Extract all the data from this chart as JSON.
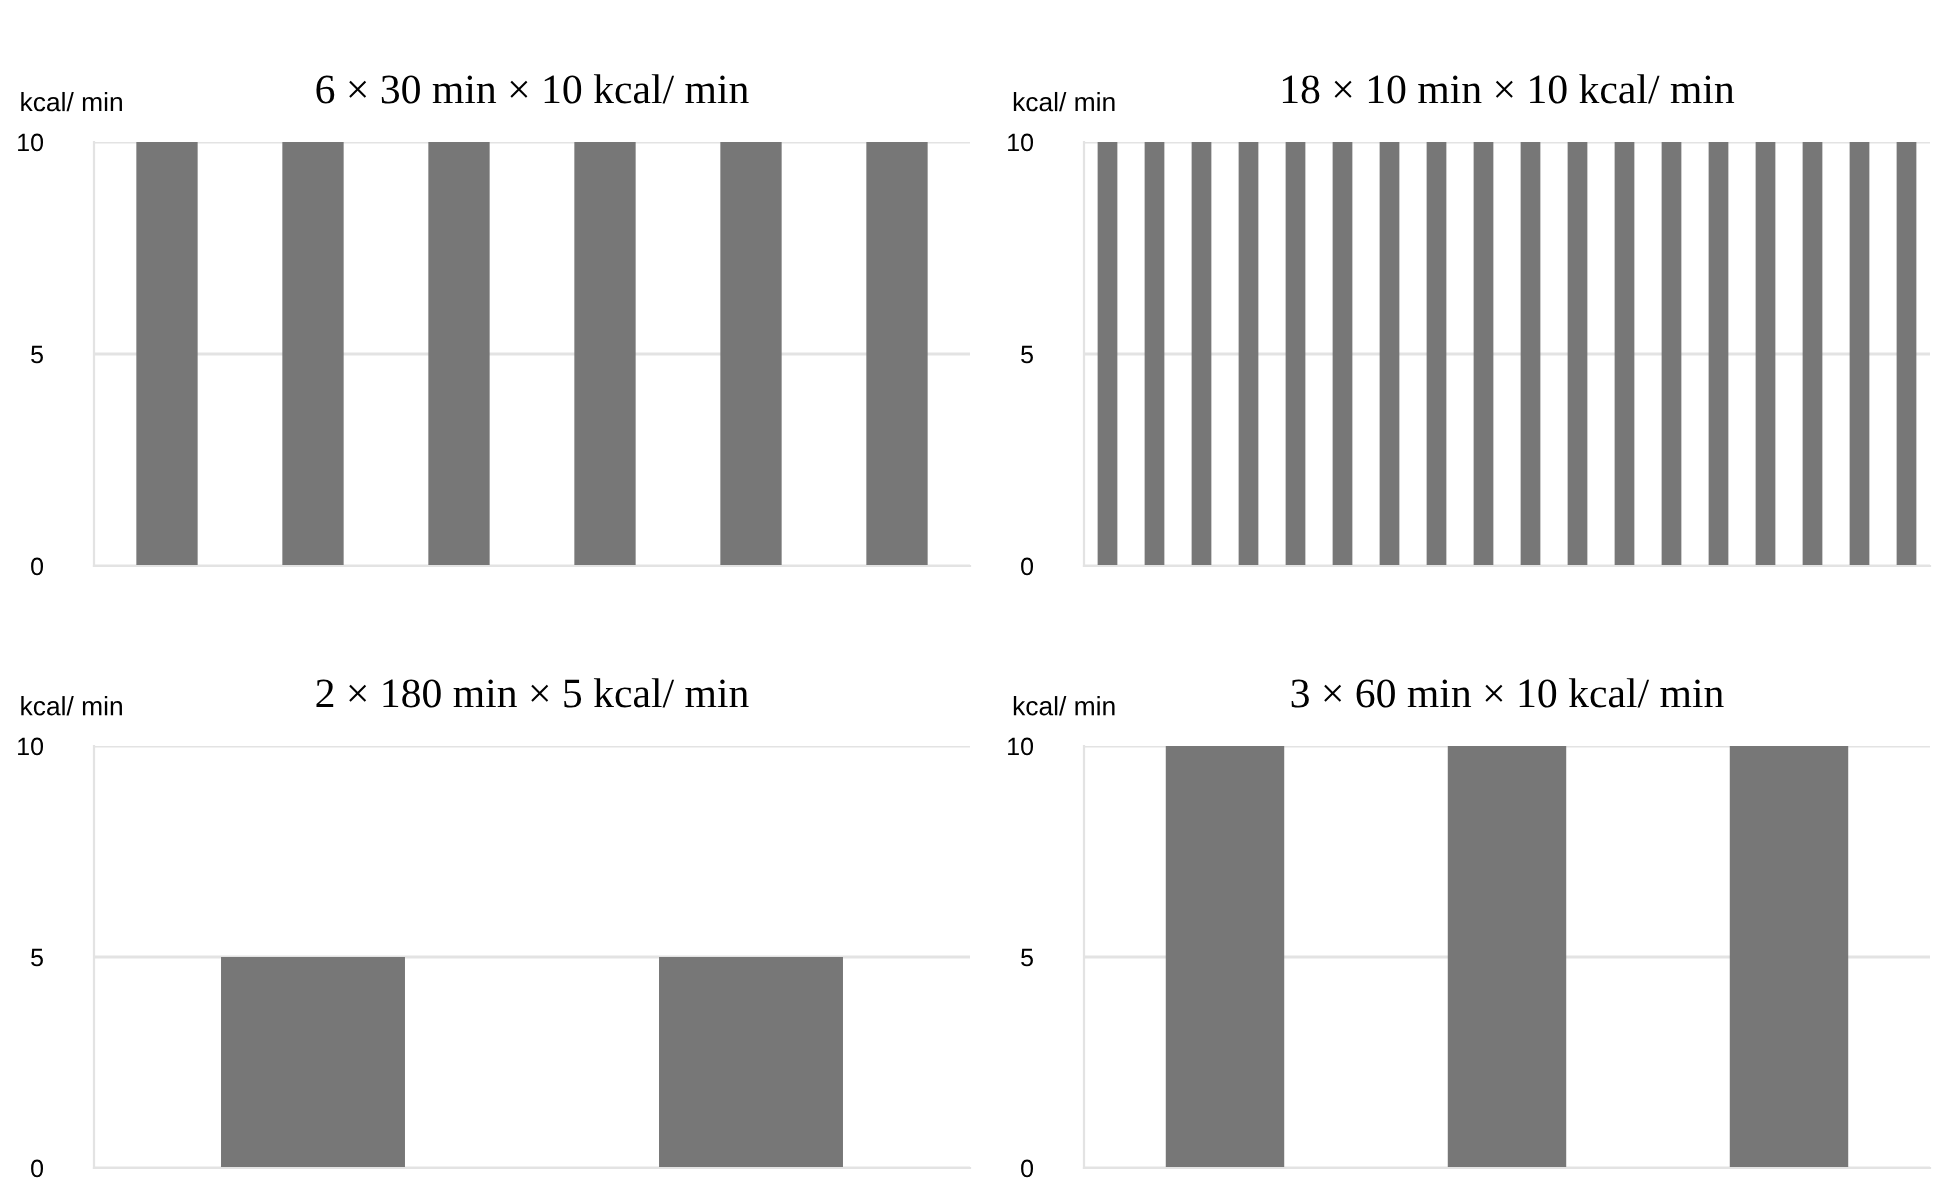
{
  "chart_data": [
    {
      "type": "bar",
      "title": "6 × 30 min × 10 kcal/ min",
      "ylabel": "kcal/ min",
      "categories": [
        null,
        null,
        null,
        null,
        null,
        null
      ],
      "values": [
        10,
        10,
        10,
        10,
        10,
        10
      ],
      "color": "#777777",
      "ylim": [
        0,
        10
      ],
      "yticks": [
        0,
        5,
        10
      ],
      "grid": "y",
      "tick_labels": "y"
    },
    {
      "type": "bar",
      "title": "18 × 10 min × 10 kcal/ min",
      "ylabel": "kcal/ min",
      "categories": [
        null,
        null,
        null,
        null,
        null,
        null,
        null,
        null,
        null,
        null,
        null,
        null,
        null,
        null,
        null,
        null,
        null,
        null
      ],
      "values": [
        10,
        10,
        10,
        10,
        10,
        10,
        10,
        10,
        10,
        10,
        10,
        10,
        10,
        10,
        10,
        10,
        10,
        10
      ],
      "color": "#777777",
      "ylim": [
        0,
        10
      ],
      "yticks": [
        0,
        5,
        10
      ],
      "grid": "y",
      "tick_labels": "y"
    },
    {
      "type": "bar",
      "title": "2 × 180 min × 5 kcal/ min",
      "ylabel": "kcal/ min",
      "categories": [
        null,
        null
      ],
      "values": [
        5,
        5
      ],
      "color": "#777777",
      "ylim": [
        0,
        10
      ],
      "yticks": [
        0,
        5,
        10
      ],
      "grid": "y",
      "tick_labels": "y"
    },
    {
      "type": "bar",
      "title": "3 × 60 min × 10 kcal/ min",
      "ylabel": "kcal/ min",
      "categories": [
        null,
        null,
        null
      ],
      "values": [
        10,
        10,
        10
      ],
      "color": "#777777",
      "ylim": [
        0,
        10
      ],
      "yticks": [
        0,
        5,
        10
      ],
      "grid": "y",
      "tick_labels": "y"
    }
  ]
}
